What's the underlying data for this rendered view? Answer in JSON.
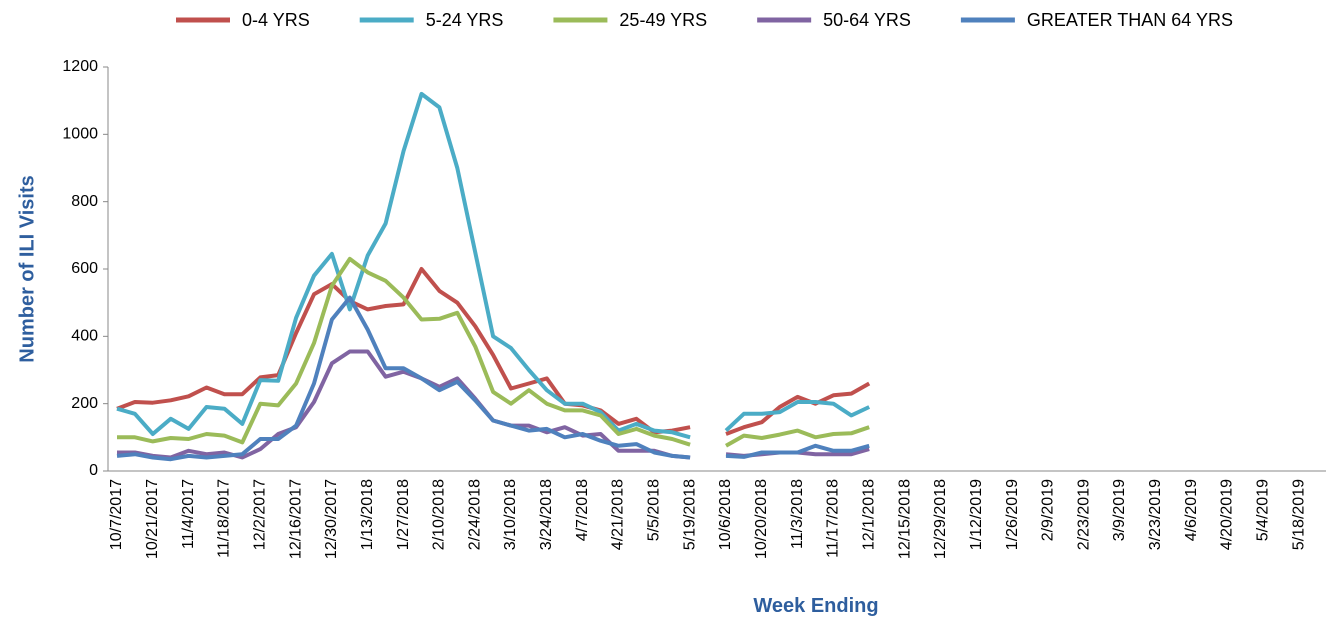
{
  "chart_data": {
    "type": "line",
    "x_label": "Week Ending",
    "y_label": "Number of ILI Visits",
    "categories": [
      "10/7/2017",
      null,
      "10/21/2017",
      null,
      "11/4/2017",
      null,
      "11/18/2017",
      null,
      "12/2/2017",
      null,
      "12/16/2017",
      null,
      "12/30/2017",
      null,
      "1/13/2018",
      null,
      "1/27/2018",
      null,
      "2/10/2018",
      null,
      "2/24/2018",
      null,
      "3/10/2018",
      null,
      "3/24/2018",
      null,
      "4/7/2018",
      null,
      "4/21/2018",
      null,
      "5/5/2018",
      null,
      "5/19/2018",
      null,
      "10/6/2018",
      null,
      "10/20/2018",
      null,
      "11/3/2018",
      null,
      "11/17/2018",
      null,
      "12/1/2018",
      null,
      "12/15/2018",
      null,
      "12/29/2018",
      null,
      "1/12/2019",
      null,
      "1/26/2019",
      null,
      "2/9/2019",
      null,
      "2/23/2019",
      null,
      "3/9/2019",
      null,
      "3/23/2019",
      null,
      "4/6/2019",
      null,
      "4/20/2019",
      null,
      "5/4/2019",
      null,
      "5/18/2019",
      null
    ],
    "series": [
      {
        "name": "0-4 YRS",
        "color": "#c0504d",
        "values": [
          185,
          205,
          203,
          210,
          222,
          248,
          228,
          228,
          278,
          285,
          410,
          525,
          555,
          505,
          480,
          490,
          495,
          600,
          535,
          500,
          430,
          345,
          245,
          260,
          275,
          200,
          195,
          180,
          140,
          155,
          115,
          120,
          130,
          null,
          110,
          130,
          145,
          190,
          220,
          200,
          225,
          230,
          260,
          null,
          null,
          null,
          null,
          null,
          null,
          null,
          null,
          null,
          null,
          null,
          null,
          null,
          null,
          null,
          null,
          null,
          null,
          null,
          null,
          null,
          null,
          null,
          null,
          null
        ]
      },
      {
        "name": "5-24 YRS",
        "color": "#4bacc6",
        "values": [
          185,
          170,
          110,
          155,
          125,
          190,
          185,
          140,
          270,
          268,
          455,
          580,
          645,
          480,
          640,
          735,
          950,
          1120,
          1080,
          900,
          650,
          400,
          365,
          300,
          240,
          200,
          200,
          175,
          120,
          140,
          120,
          115,
          100,
          null,
          120,
          170,
          170,
          175,
          205,
          205,
          200,
          165,
          190,
          null,
          null,
          null,
          null,
          null,
          null,
          null,
          null,
          null,
          null,
          null,
          null,
          null,
          null,
          null,
          null,
          null,
          null,
          null,
          null,
          null,
          null,
          null,
          null,
          null
        ]
      },
      {
        "name": "25-49 YRS",
        "color": "#9bbb59",
        "values": [
          100,
          100,
          88,
          98,
          95,
          110,
          105,
          85,
          200,
          195,
          260,
          380,
          550,
          630,
          590,
          565,
          515,
          450,
          452,
          470,
          370,
          235,
          200,
          240,
          200,
          180,
          180,
          165,
          110,
          125,
          105,
          95,
          78,
          null,
          75,
          105,
          98,
          108,
          120,
          100,
          110,
          112,
          130,
          null,
          null,
          null,
          null,
          null,
          null,
          null,
          null,
          null,
          null,
          null,
          null,
          null,
          null,
          null,
          null,
          null,
          null,
          null,
          null,
          null,
          null,
          null,
          null,
          null
        ]
      },
      {
        "name": "50-64 YRS",
        "color": "#8064a2",
        "values": [
          55,
          55,
          45,
          40,
          60,
          50,
          55,
          40,
          65,
          110,
          130,
          205,
          320,
          355,
          355,
          280,
          295,
          275,
          250,
          275,
          215,
          150,
          135,
          135,
          115,
          130,
          105,
          110,
          60,
          60,
          60,
          45,
          40,
          null,
          50,
          45,
          50,
          55,
          55,
          50,
          50,
          50,
          65,
          null,
          null,
          null,
          null,
          null,
          null,
          null,
          null,
          null,
          null,
          null,
          null,
          null,
          null,
          null,
          null,
          null,
          null,
          null,
          null,
          null,
          null,
          null,
          null,
          null
        ]
      },
      {
        "name": "GREATER THAN 64 YRS",
        "color": "#4f81bd",
        "values": [
          45,
          50,
          40,
          35,
          45,
          40,
          45,
          50,
          95,
          95,
          135,
          260,
          450,
          515,
          420,
          305,
          305,
          275,
          240,
          265,
          210,
          150,
          135,
          120,
          125,
          100,
          110,
          90,
          75,
          80,
          55,
          45,
          40,
          null,
          45,
          42,
          55,
          55,
          55,
          75,
          60,
          60,
          75,
          null,
          null,
          null,
          null,
          null,
          null,
          null,
          null,
          null,
          null,
          null,
          null,
          null,
          null,
          null,
          null,
          null,
          null,
          null,
          null,
          null,
          null,
          null,
          null,
          null
        ]
      }
    ],
    "ylim": [
      0,
      1200
    ],
    "yticks": [
      0,
      200,
      400,
      600,
      800,
      1000,
      1200
    ],
    "grid": false,
    "legend": "top"
  }
}
